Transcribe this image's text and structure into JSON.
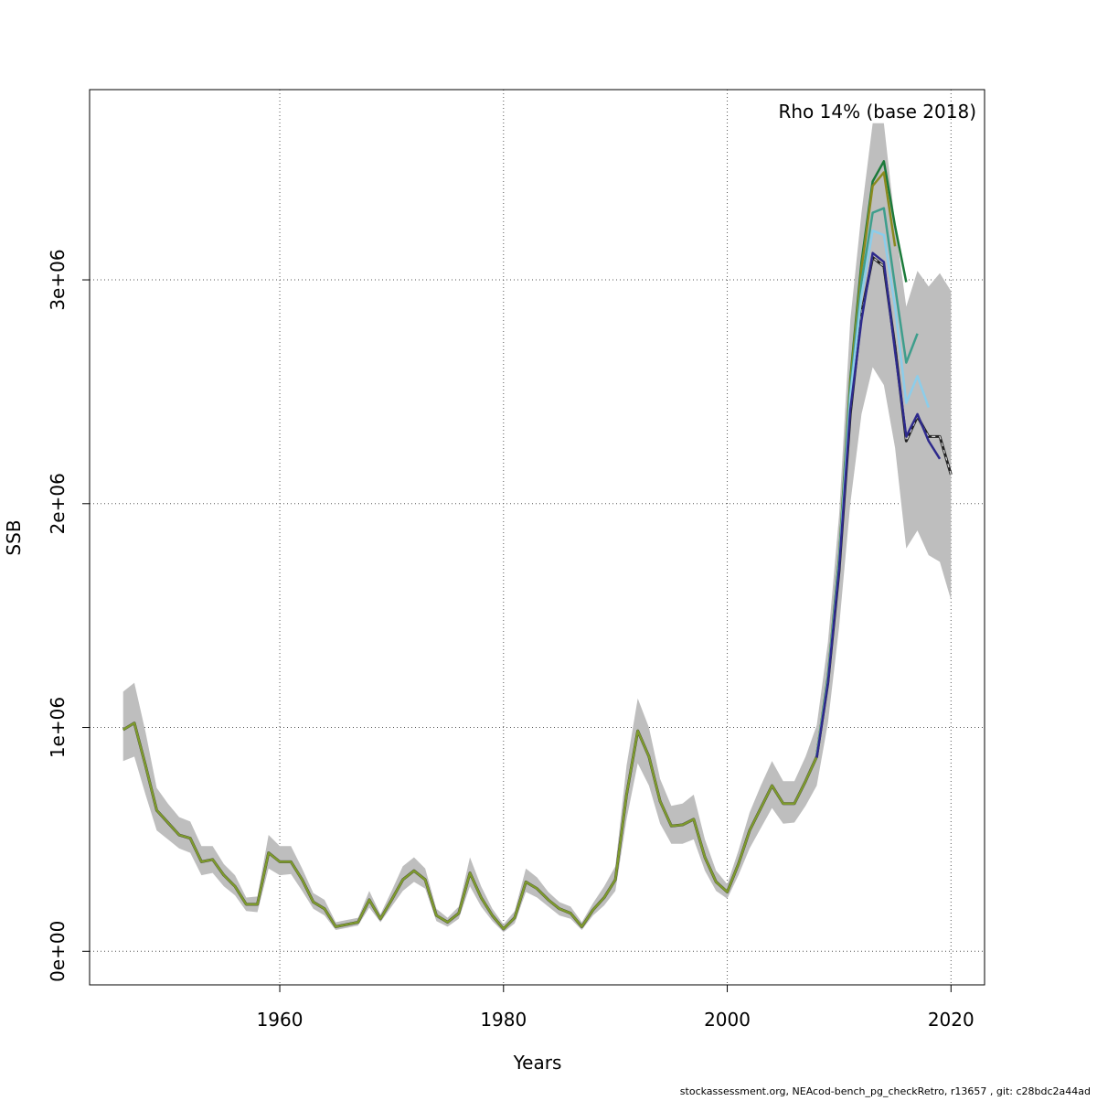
{
  "chart_data": {
    "type": "line",
    "title": "",
    "annotation": "Rho 14% (base 2018)",
    "xlabel": "Years",
    "ylabel": "SSB",
    "footer": "stockassessment.org, NEAcod-bench_pg_checkRetro, r13657 , git: c28bdc2a44ad",
    "xlim": [
      1943,
      2023
    ],
    "ylim": [
      -150000,
      3850000
    ],
    "grid": true,
    "x_ticks": [
      1960,
      1980,
      2000,
      2020
    ],
    "x_tick_labels": [
      "1960",
      "1980",
      "2000",
      "2020"
    ],
    "y_ticks": [
      0,
      1000000,
      2000000,
      3000000
    ],
    "y_tick_labels": [
      "0e+00",
      "1e+06",
      "2e+06",
      "3e+06"
    ],
    "years": [
      1946,
      1947,
      1948,
      1949,
      1950,
      1951,
      1952,
      1953,
      1954,
      1955,
      1956,
      1957,
      1958,
      1959,
      1960,
      1961,
      1962,
      1963,
      1964,
      1965,
      1966,
      1967,
      1968,
      1969,
      1970,
      1971,
      1972,
      1973,
      1974,
      1975,
      1976,
      1977,
      1978,
      1979,
      1980,
      1981,
      1982,
      1983,
      1984,
      1985,
      1986,
      1987,
      1988,
      1989,
      1990,
      1991,
      1992,
      1993,
      1994,
      1995,
      1996,
      1997,
      1998,
      1999,
      2000,
      2001,
      2002,
      2003,
      2004,
      2005,
      2006,
      2007,
      2008,
      2009,
      2010,
      2011,
      2012,
      2013,
      2014,
      2015,
      2016,
      2017,
      2018,
      2019,
      2020
    ],
    "base_series": [
      990000,
      1020000,
      830000,
      630000,
      575000,
      520000,
      505000,
      400000,
      410000,
      340000,
      290000,
      210000,
      210000,
      440000,
      400000,
      400000,
      320000,
      220000,
      190000,
      110000,
      120000,
      130000,
      230000,
      145000,
      230000,
      320000,
      360000,
      320000,
      160000,
      130000,
      170000,
      350000,
      240000,
      160000,
      100000,
      150000,
      310000,
      280000,
      230000,
      190000,
      170000,
      110000,
      185000,
      240000,
      320000,
      700000,
      985000,
      870000,
      670000,
      560000,
      565000,
      590000,
      420000,
      310000,
      265000,
      390000,
      540000,
      640000,
      740000,
      660000,
      660000,
      760000,
      870000,
      1200000,
      1700000,
      2400000,
      2850000,
      3100000,
      3060000,
      2700000,
      2280000,
      2390000,
      2300000,
      2300000,
      2130000
    ],
    "ci_lower": [
      850000,
      870000,
      700000,
      540000,
      500000,
      460000,
      440000,
      340000,
      350000,
      290000,
      250000,
      180000,
      175000,
      370000,
      340000,
      345000,
      270000,
      190000,
      160000,
      95000,
      105000,
      115000,
      195000,
      130000,
      200000,
      270000,
      310000,
      280000,
      135000,
      110000,
      145000,
      290000,
      200000,
      135000,
      85000,
      125000,
      265000,
      240000,
      200000,
      160000,
      145000,
      95000,
      160000,
      205000,
      270000,
      590000,
      840000,
      740000,
      570000,
      480000,
      480000,
      500000,
      360000,
      270000,
      235000,
      340000,
      460000,
      550000,
      640000,
      570000,
      575000,
      650000,
      740000,
      1020000,
      1450000,
      2000000,
      2400000,
      2610000,
      2530000,
      2250000,
      1800000,
      1880000,
      1770000,
      1740000,
      1570000
    ],
    "ci_upper": [
      1160000,
      1200000,
      980000,
      730000,
      660000,
      600000,
      580000,
      470000,
      470000,
      390000,
      340000,
      240000,
      245000,
      520000,
      470000,
      470000,
      370000,
      260000,
      230000,
      130000,
      140000,
      150000,
      270000,
      165000,
      270000,
      380000,
      420000,
      370000,
      190000,
      150000,
      200000,
      420000,
      290000,
      190000,
      120000,
      180000,
      370000,
      330000,
      265000,
      220000,
      200000,
      130000,
      215000,
      290000,
      380000,
      830000,
      1130000,
      1000000,
      770000,
      650000,
      660000,
      700000,
      500000,
      360000,
      300000,
      450000,
      620000,
      740000,
      850000,
      760000,
      760000,
      870000,
      1010000,
      1380000,
      1950000,
      2820000,
      3300000,
      3700000,
      3700000,
      3250000,
      2880000,
      3040000,
      2970000,
      3030000,
      2950000
    ],
    "series": [
      {
        "color": "#1B7A3A",
        "x": [
          2008,
          2009,
          2010,
          2011,
          2012,
          2013,
          2014,
          2015,
          2016
        ],
        "values": [
          880000,
          1230000,
          1760000,
          2560000,
          3080000,
          3440000,
          3530000,
          3240000,
          2990000
        ]
      },
      {
        "color": "#8A8A1E",
        "x": [
          2008,
          2009,
          2010,
          2011,
          2012,
          2013,
          2014,
          2015
        ],
        "values": [
          880000,
          1220000,
          1750000,
          2540000,
          3050000,
          3420000,
          3480000,
          3150000
        ]
      },
      {
        "color": "#3E9E8C",
        "x": [
          2008,
          2009,
          2010,
          2011,
          2012,
          2013,
          2014,
          2015,
          2016,
          2017
        ],
        "values": [
          875000,
          1215000,
          1740000,
          2510000,
          2990000,
          3300000,
          3320000,
          2970000,
          2630000,
          2760000
        ]
      },
      {
        "color": "#8CCDEA",
        "x": [
          2008,
          2009,
          2010,
          2011,
          2012,
          2013,
          2014,
          2015,
          2016,
          2017,
          2018
        ],
        "values": [
          872000,
          1210000,
          1725000,
          2480000,
          2930000,
          3220000,
          3200000,
          2880000,
          2450000,
          2570000,
          2430000
        ]
      },
      {
        "color": "#2E2A8C",
        "x": [
          2008,
          2009,
          2010,
          2011,
          2012,
          2013,
          2014,
          2015,
          2016,
          2017,
          2018,
          2019
        ],
        "values": [
          865000,
          1200000,
          1710000,
          2420000,
          2820000,
          3120000,
          3080000,
          2680000,
          2300000,
          2400000,
          2280000,
          2200000
        ]
      }
    ],
    "base_color": "#222222",
    "early_color": "#7E9A2E",
    "ci_color": "#BEBEBE"
  }
}
